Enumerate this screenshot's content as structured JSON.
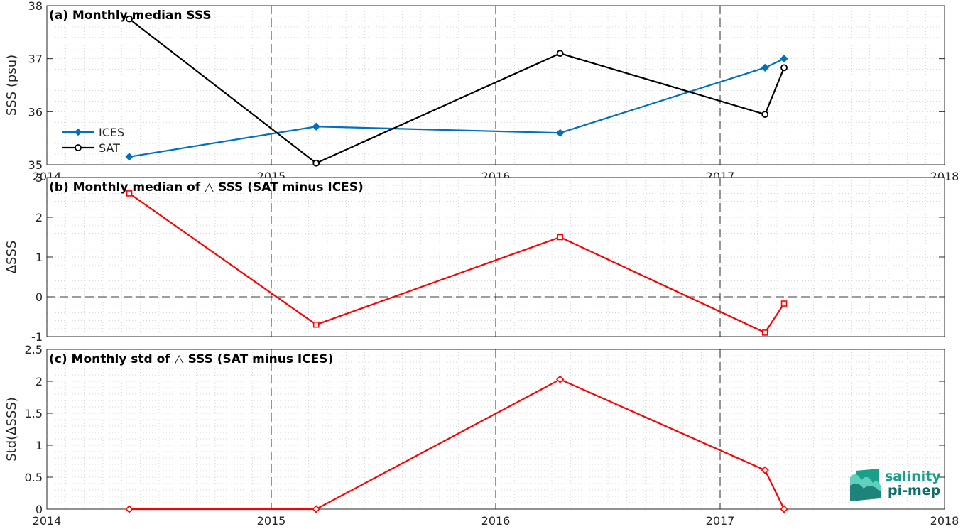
{
  "chart_data": [
    {
      "type": "line",
      "title": "(a) Monthly median SSS",
      "xlabel": "",
      "ylabel": "SSS (psu)",
      "xlim": [
        "2014-01-01",
        "2018-01-01"
      ],
      "xticks": [
        "2014",
        "2015",
        "2016",
        "2017",
        "2018"
      ],
      "ylim": [
        35,
        38
      ],
      "yticks": [
        "35",
        "36",
        "37",
        "38"
      ],
      "grid": "minor dotted, major dashed at years",
      "legend": "left",
      "series": [
        {
          "name": "ICES",
          "color": "#0072BD",
          "marker": "diamond",
          "x": [
            "2014-05-15",
            "2015-03-15",
            "2016-04-15",
            "2017-03-15",
            "2017-04-15"
          ],
          "y": [
            35.15,
            35.72,
            35.6,
            36.83,
            37.0
          ]
        },
        {
          "name": "SAT",
          "color": "#000000",
          "marker": "circle",
          "x": [
            "2014-05-15",
            "2015-03-15",
            "2016-04-15",
            "2017-03-15",
            "2017-04-15"
          ],
          "y": [
            37.75,
            35.03,
            37.1,
            35.95,
            36.83
          ]
        }
      ]
    },
    {
      "type": "line",
      "title": "(b) Monthly median of △ SSS (SAT minus ICES)",
      "xlabel": "",
      "ylabel": "ΔSSS",
      "xlim": [
        "2014-01-01",
        "2018-01-01"
      ],
      "ylim": [
        -1,
        3
      ],
      "yticks": [
        "-1",
        "0",
        "1",
        "2",
        "3"
      ],
      "grid": "minor dotted, major dashed at years, dashed zero line",
      "series": [
        {
          "color": "#ff0000",
          "marker": "square",
          "x": [
            "2014-05-15",
            "2015-03-15",
            "2016-04-15",
            "2017-03-15",
            "2017-04-15"
          ],
          "y": [
            2.6,
            -0.7,
            1.5,
            -0.9,
            -0.17
          ]
        }
      ]
    },
    {
      "type": "line",
      "title": "(c) Monthly std of △ SSS (SAT minus ICES)",
      "xlabel": "",
      "ylabel": "Std(ΔSSS)",
      "xlim": [
        "2014-01-01",
        "2018-01-01"
      ],
      "xticks": [
        "2014",
        "2015",
        "2016",
        "2017",
        "2018"
      ],
      "ylim": [
        0,
        2.5
      ],
      "yticks": [
        "0",
        "0.5",
        "1",
        "1.5",
        "2",
        "2.5"
      ],
      "grid": "minor dotted, major dashed at years",
      "series": [
        {
          "color": "#ff0000",
          "marker": "diamond",
          "x": [
            "2014-05-15",
            "2015-03-15",
            "2016-04-15",
            "2017-03-15",
            "2017-04-15"
          ],
          "y": [
            0,
            0,
            2.03,
            0.61,
            0
          ]
        }
      ]
    }
  ],
  "logo": {
    "line1": "salinity",
    "line2": "pi-mep",
    "color1": "#1aa08a",
    "color2": "#0e6f68"
  }
}
